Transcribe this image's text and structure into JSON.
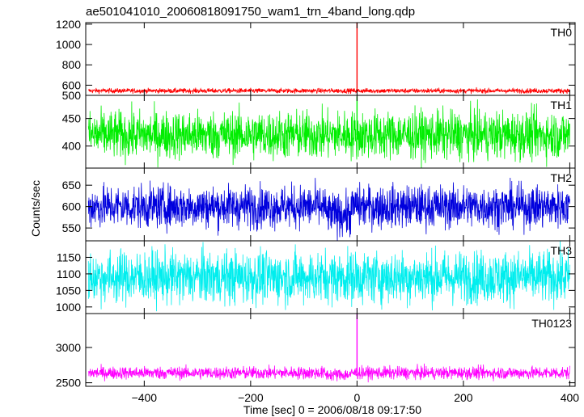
{
  "chart_data": {
    "type": "line",
    "title": "ae501041010_20060818091750_wam1_trn_4band_long.qdp",
    "xlabel": "Time [sec] 0 = 2006/08/18 09:17:50",
    "ylabel": "Counts/sec",
    "xlim": [
      -510,
      410
    ],
    "x_ticks": [
      -400,
      -200,
      0,
      200,
      400
    ],
    "x_tick_labels": [
      "−400",
      "−200",
      "0",
      "200",
      "400"
    ],
    "x_start": -505,
    "x_end": 400,
    "grid": false,
    "panels": [
      {
        "name": "TH0",
        "color": "#ff0000",
        "ylim": [
          500,
          1215
        ],
        "y_ticks": [
          500,
          600,
          800,
          1000,
          1200
        ],
        "baseline": 545,
        "noise": 12,
        "spike": 1215
      },
      {
        "name": "TH1",
        "color": "#00ee00",
        "ylim": [
          360,
          492
        ],
        "y_ticks": [
          400,
          450
        ],
        "baseline": 420,
        "noise": 22,
        "spike": 490
      },
      {
        "name": "TH2",
        "color": "#0000dd",
        "ylim": [
          520,
          690
        ],
        "y_ticks": [
          550,
          600,
          650
        ],
        "baseline": 600,
        "noise": 25,
        "spike": 630
      },
      {
        "name": "TH3",
        "color": "#00eeee",
        "ylim": [
          980,
          1200
        ],
        "y_ticks": [
          1000,
          1050,
          1100,
          1150
        ],
        "baseline": 1090,
        "noise": 40,
        "spike": 1130
      },
      {
        "name": "TH0123",
        "color": "#ff00ff",
        "ylim": [
          2450,
          3480
        ],
        "y_ticks": [
          2500,
          3000
        ],
        "baseline": 2640,
        "noise": 45,
        "spike": 3480
      }
    ]
  }
}
